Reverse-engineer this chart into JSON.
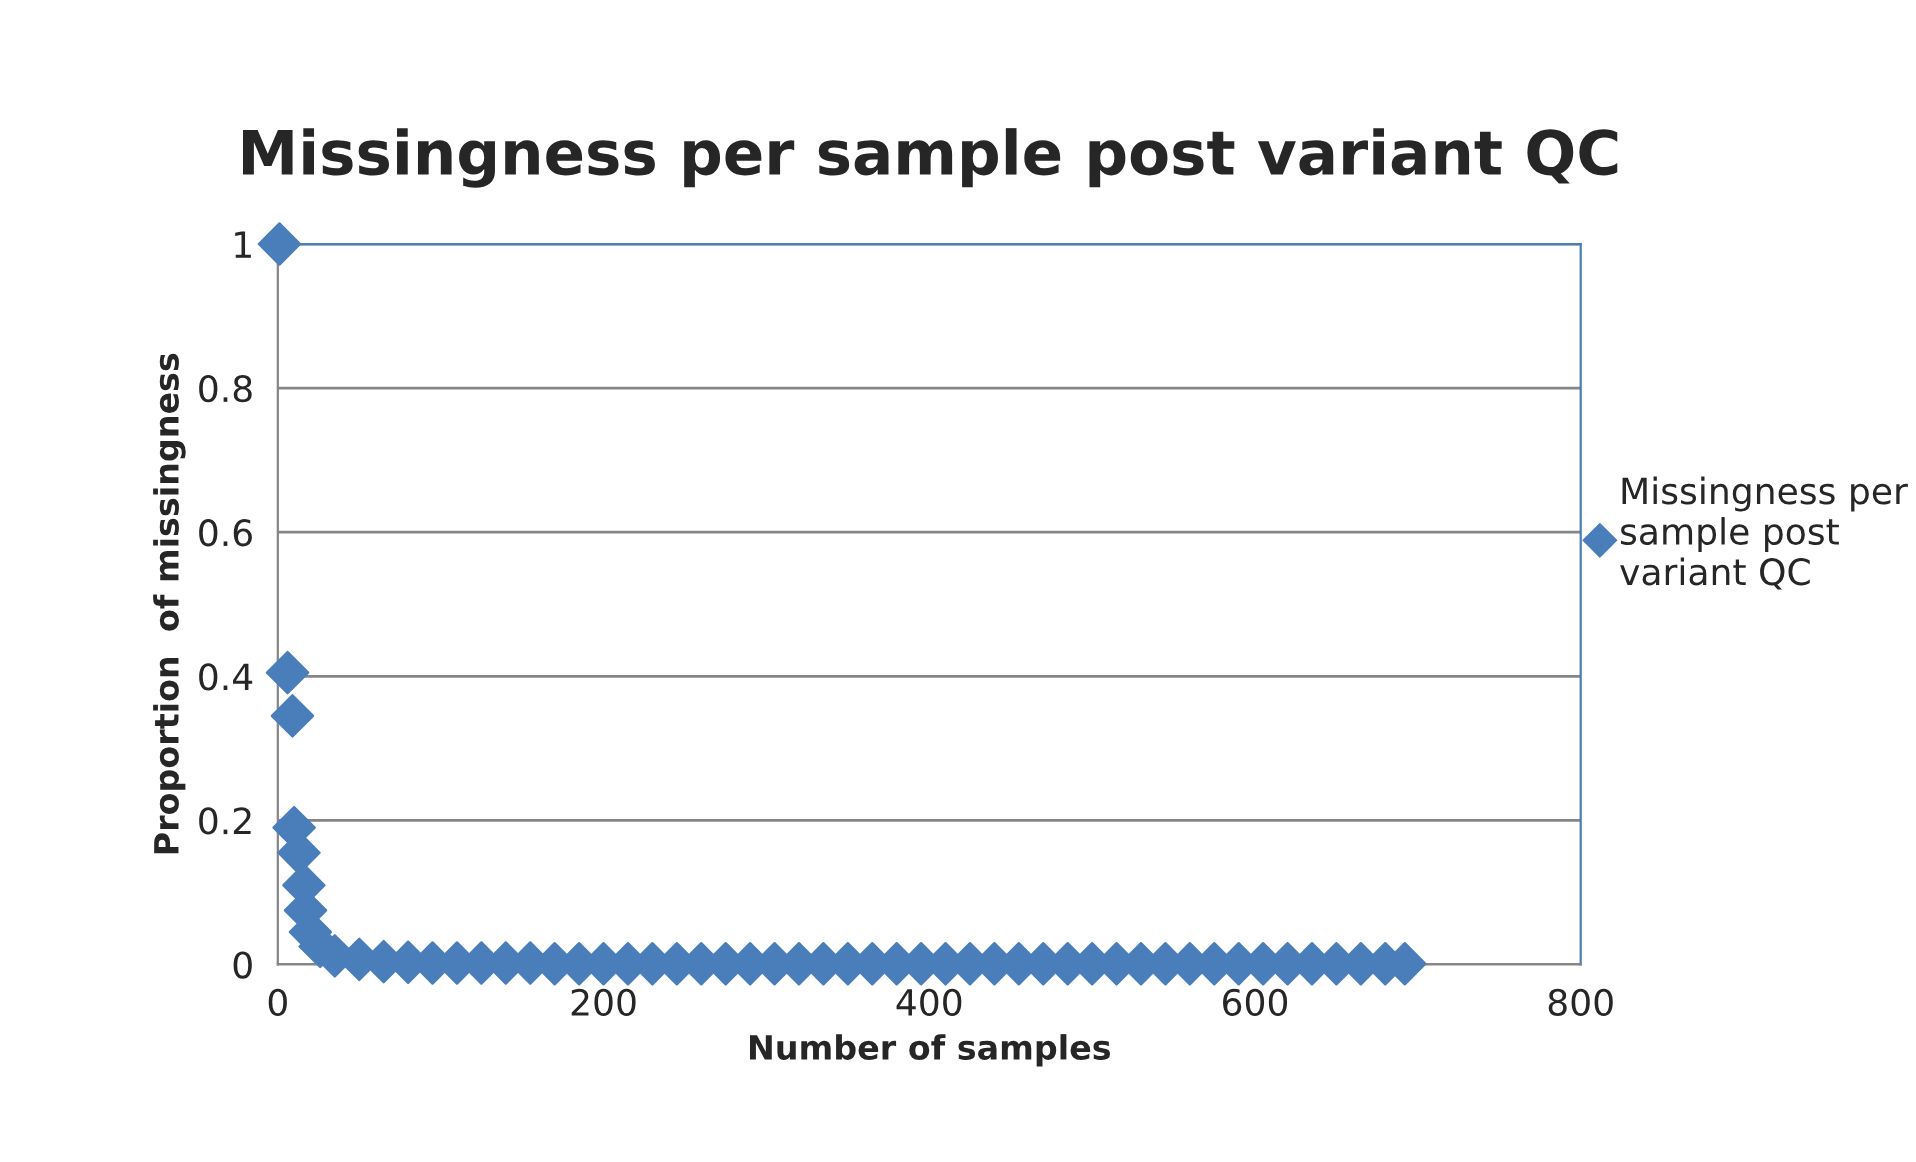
{
  "chart_data": {
    "type": "scatter",
    "title": "Missingness per sample post variant QC",
    "xlabel": "Number of samples",
    "ylabel": "Proportion  of missingness",
    "series": [
      {
        "name": "Missingness per sample post variant QC",
        "color": "#4a7ebb",
        "x": [
          1,
          6,
          9,
          10,
          13,
          16,
          17,
          20,
          26,
          35,
          50,
          65,
          80,
          95,
          110,
          125,
          140,
          155,
          170,
          185,
          200,
          215,
          230,
          245,
          260,
          275,
          290,
          305,
          320,
          335,
          350,
          365,
          380,
          395,
          410,
          425,
          440,
          455,
          470,
          485,
          500,
          515,
          530,
          545,
          560,
          575,
          590,
          605,
          620,
          635,
          650,
          665,
          680,
          692
        ],
        "values": [
          1,
          0.405,
          0.345,
          0.19,
          0.155,
          0.11,
          0.075,
          0.045,
          0.025,
          0.012,
          0.007,
          0.004,
          0.003,
          0.002,
          0.002,
          0.002,
          0.002,
          0.002,
          0.001,
          0.001,
          0.001,
          0.001,
          0.001,
          0.001,
          0.001,
          0.001,
          0.001,
          0.001,
          0.001,
          0.001,
          0.001,
          0.001,
          0.001,
          0.001,
          0.001,
          0.001,
          0.001,
          0.001,
          0.001,
          0.001,
          0.001,
          0.001,
          0.001,
          0.001,
          0.001,
          0.001,
          0.001,
          0.001,
          0.001,
          0.001,
          0.001,
          0.001,
          0.001,
          0.001
        ]
      }
    ],
    "xlim": [
      0,
      800
    ],
    "xticks": [
      0,
      200,
      400,
      600,
      800
    ],
    "ylim": [
      0,
      1
    ],
    "yticks": [
      0,
      0.2,
      0.4,
      0.6,
      0.8,
      1
    ],
    "grid": "y",
    "legend": "right",
    "marker": "diamond"
  }
}
